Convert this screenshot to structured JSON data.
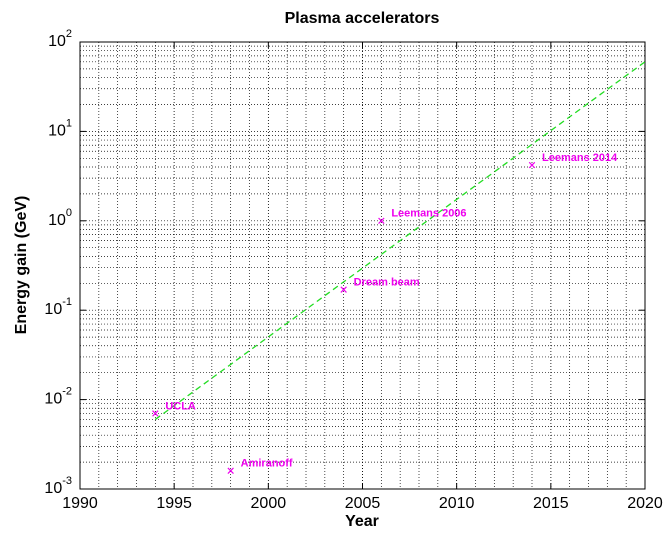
{
  "chart_data": {
    "type": "scatter",
    "title": "Plasma accelerators",
    "x_label": "Year",
    "y_label": "Energy gain (GeV)",
    "xlim": [
      1990,
      2020
    ],
    "xticks": [
      1990,
      1995,
      2000,
      2005,
      2010,
      2015,
      2020
    ],
    "ylim": [
      0.001,
      100
    ],
    "yticks": [
      {
        "value": 0.001,
        "label": "10^-3"
      },
      {
        "value": 0.01,
        "label": "10^-2"
      },
      {
        "value": 0.1,
        "label": "10^-1"
      },
      {
        "value": 1,
        "label": "10^0"
      },
      {
        "value": 10,
        "label": "10^1"
      },
      {
        "value": 100,
        "label": "10^2"
      }
    ],
    "y_log": true,
    "grid": true,
    "series": [
      {
        "color": "#ee00ee",
        "x": [
          1994,
          1998,
          2004,
          2006,
          2014
        ],
        "values": [
          0.007,
          0.0016,
          0.17,
          1.0,
          4.2
        ],
        "labels": [
          "UCLA",
          "Amiranoff",
          "Dream beam",
          "Leemans 2006",
          "Leemans 2014"
        ]
      }
    ],
    "trend": {
      "color": "#22dd22",
      "x": [
        1994,
        2020
      ],
      "values": [
        0.006,
        60
      ]
    }
  }
}
